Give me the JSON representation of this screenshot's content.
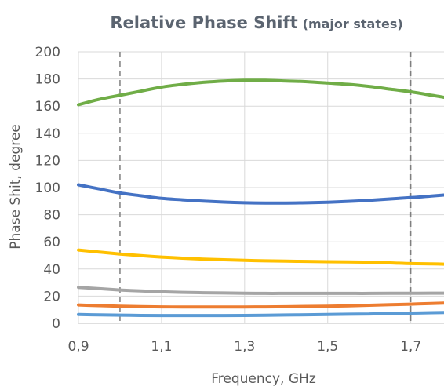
{
  "chart_data": {
    "type": "line",
    "title": "Relative Phase Shift",
    "subtitle": "(major states)",
    "xlabel": "Frequency, GHz",
    "ylabel": "Phase Shit, degree",
    "xlim": [
      0.9,
      1.78
    ],
    "ylim": [
      0,
      200
    ],
    "x_ticks": [
      "0,9",
      "1,1",
      "1,3",
      "1,5",
      "1,7"
    ],
    "x_tick_values": [
      0.9,
      1.1,
      1.3,
      1.5,
      1.7
    ],
    "y_ticks": [
      "0",
      "20",
      "40",
      "60",
      "80",
      "100",
      "120",
      "140",
      "160",
      "180",
      "200"
    ],
    "y_tick_values": [
      0,
      20,
      40,
      60,
      80,
      100,
      120,
      140,
      160,
      180,
      200
    ],
    "grid": true,
    "markers": [
      1.0,
      1.7
    ],
    "x": [
      0.9,
      0.95,
      1.0,
      1.05,
      1.1,
      1.15,
      1.2,
      1.25,
      1.3,
      1.35,
      1.4,
      1.45,
      1.5,
      1.55,
      1.6,
      1.65,
      1.7,
      1.75,
      1.78
    ],
    "series": [
      {
        "color": "#70ad47",
        "values": [
          161,
          165,
          168,
          171,
          174,
          176,
          177.5,
          178.5,
          179,
          179,
          178.5,
          178,
          177,
          176,
          174.5,
          172.5,
          170.5,
          168,
          166.5
        ]
      },
      {
        "color": "#4472c4",
        "values": [
          102,
          99,
          96,
          94,
          92,
          91,
          90,
          89.3,
          88.8,
          88.6,
          88.6,
          88.8,
          89.2,
          89.8,
          90.6,
          91.6,
          92.6,
          93.8,
          94.5
        ]
      },
      {
        "color": "#ffc000",
        "values": [
          54,
          52.5,
          51,
          49.8,
          48.8,
          48,
          47.3,
          46.8,
          46.4,
          46,
          45.8,
          45.6,
          45.4,
          45.2,
          45,
          44.5,
          44,
          43.8,
          43.6
        ]
      },
      {
        "color": "#a5a5a5",
        "values": [
          26.5,
          25.5,
          24.5,
          23.8,
          23.2,
          22.8,
          22.5,
          22.3,
          22.1,
          22,
          22,
          22,
          22,
          22,
          22,
          22.1,
          22.1,
          22.2,
          22.2
        ]
      },
      {
        "color": "#ed7d31",
        "values": [
          13.5,
          13,
          12.6,
          12.3,
          12.1,
          12,
          12,
          12,
          12,
          12.1,
          12.2,
          12.4,
          12.6,
          12.9,
          13.3,
          13.7,
          14.1,
          14.6,
          14.9
        ]
      },
      {
        "color": "#5b9bd5",
        "values": [
          6.5,
          6.2,
          6,
          5.8,
          5.7,
          5.7,
          5.7,
          5.7,
          5.8,
          5.9,
          6.1,
          6.3,
          6.5,
          6.7,
          6.9,
          7.2,
          7.5,
          7.8,
          8
        ]
      }
    ]
  }
}
